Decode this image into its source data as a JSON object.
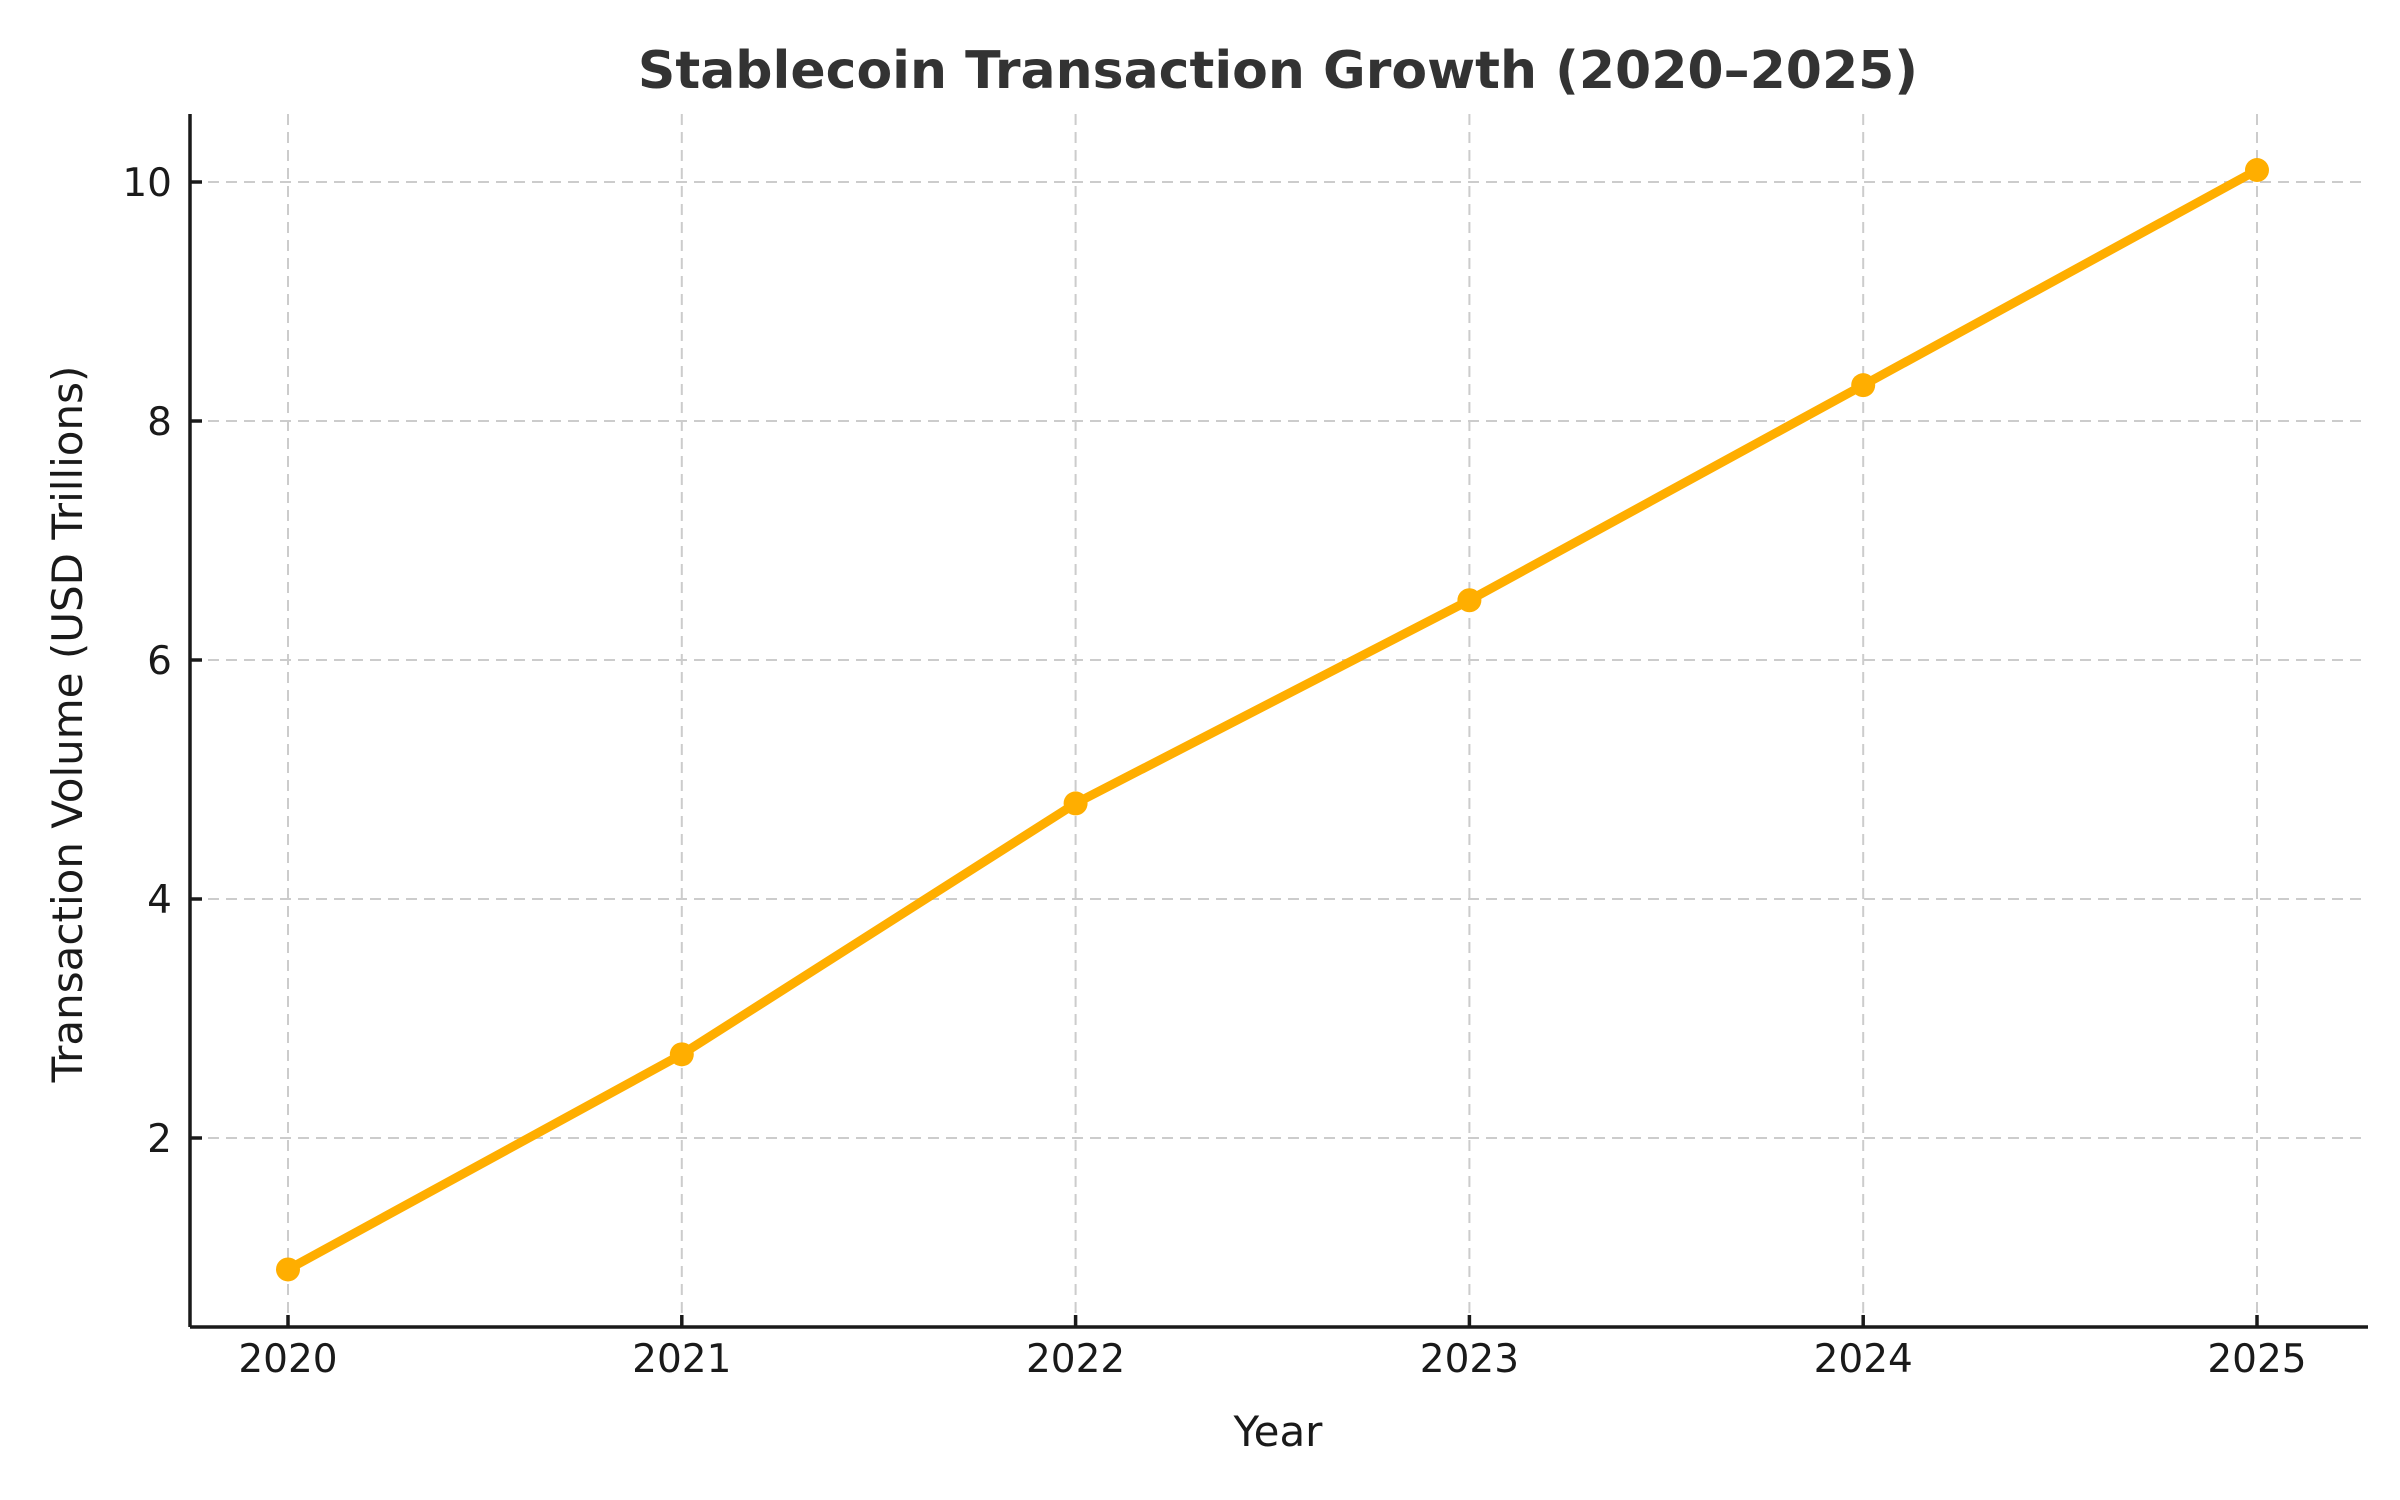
{
  "chart_data": {
    "type": "line",
    "title": "Stablecoin Transaction Growth (2020–2025)",
    "xlabel": "Year",
    "ylabel": "Transaction Volume (USD Trillions)",
    "categories": [
      "2020",
      "2021",
      "2022",
      "2023",
      "2024",
      "2025"
    ],
    "x": [
      2020,
      2021,
      2022,
      2023,
      2024,
      2025
    ],
    "series": [
      {
        "name": "Transaction Volume",
        "values": [
          0.9,
          2.7,
          4.8,
          6.5,
          8.3,
          10.1
        ],
        "color": "#FFAE00",
        "marker": "circle"
      }
    ],
    "yticks": [
      2,
      4,
      6,
      8,
      10
    ],
    "ytick_labels": [
      "2",
      "4",
      "6",
      "8",
      "10"
    ],
    "ylim": [
      0.44,
      10.58
    ],
    "xlim": [
      2019.75,
      2025.25
    ],
    "grid": true,
    "legend": null
  }
}
